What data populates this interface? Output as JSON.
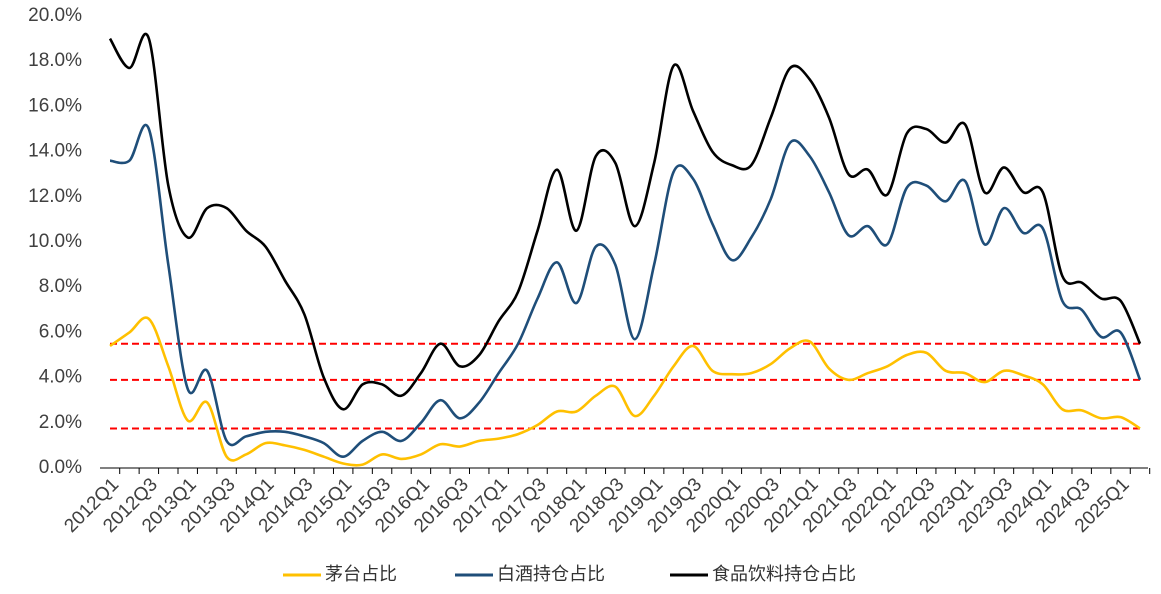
{
  "chart_data": {
    "type": "line",
    "categories": [
      "2012Q1",
      null,
      "2012Q3",
      null,
      "2013Q1",
      null,
      "2013Q3",
      null,
      "2014Q1",
      null,
      "2014Q3",
      null,
      "2015Q1",
      null,
      "2015Q3",
      null,
      "2016Q1",
      null,
      "2016Q3",
      null,
      "2017Q1",
      null,
      "2017Q3",
      null,
      "2018Q1",
      null,
      "2018Q3",
      null,
      "2019Q1",
      null,
      "2019Q3",
      null,
      "2020Q1",
      null,
      "2020Q3",
      null,
      "2021Q1",
      null,
      "2021Q3",
      null,
      "2022Q1",
      null,
      "2022Q3",
      null,
      "2023Q1",
      null,
      "2023Q3",
      null,
      "2024Q1",
      null,
      "2024Q3",
      null,
      "2025Q1",
      null
    ],
    "series": [
      {
        "name": "茅台占比",
        "color": "#ffc000",
        "values": [
          5.4,
          6.0,
          6.6,
          4.5,
          2.1,
          2.9,
          0.5,
          0.6,
          1.1,
          1.0,
          0.8,
          0.5,
          0.2,
          0.15,
          0.6,
          0.4,
          0.6,
          1.05,
          0.95,
          1.2,
          1.3,
          1.5,
          1.9,
          2.5,
          2.5,
          3.2,
          3.6,
          2.3,
          3.2,
          4.5,
          5.4,
          4.3,
          4.15,
          4.2,
          4.6,
          5.3,
          5.6,
          4.4,
          3.9,
          4.2,
          4.5,
          5.0,
          5.1,
          4.3,
          4.2,
          3.8,
          4.3,
          4.1,
          3.7,
          2.6,
          2.55,
          2.2,
          2.25,
          1.75
        ]
      },
      {
        "name": "白酒持仓占比",
        "color": "#1f4e79",
        "values": [
          13.6,
          13.6,
          15.0,
          9.0,
          3.5,
          4.3,
          1.2,
          1.4,
          1.6,
          1.6,
          1.4,
          1.1,
          0.5,
          1.2,
          1.6,
          1.2,
          2.0,
          3.0,
          2.2,
          2.9,
          4.2,
          5.5,
          7.5,
          9.1,
          7.3,
          9.8,
          9.0,
          5.7,
          9.0,
          13.1,
          12.8,
          10.8,
          9.2,
          10.2,
          11.9,
          14.4,
          13.8,
          12.2,
          10.3,
          10.7,
          9.9,
          12.4,
          12.5,
          11.8,
          12.7,
          9.9,
          11.5,
          10.4,
          10.6,
          7.4,
          7.0,
          5.8,
          6.0,
          3.9
        ]
      },
      {
        "name": "食品饮料持仓占比",
        "color": "#000000",
        "values": [
          19.0,
          17.7,
          19.0,
          12.5,
          10.2,
          11.5,
          11.5,
          10.5,
          9.8,
          8.3,
          6.8,
          4.0,
          2.6,
          3.7,
          3.7,
          3.2,
          4.2,
          5.5,
          4.5,
          5.0,
          6.5,
          7.8,
          10.5,
          13.2,
          10.5,
          13.8,
          13.5,
          10.7,
          13.5,
          17.8,
          15.8,
          14.0,
          13.4,
          13.4,
          15.5,
          17.7,
          17.2,
          15.5,
          13.0,
          13.2,
          12.1,
          14.8,
          15.0,
          14.4,
          15.2,
          12.2,
          13.3,
          12.2,
          12.2,
          8.5,
          8.2,
          7.5,
          7.4,
          5.5
        ]
      }
    ],
    "ylim": [
      0,
      20
    ],
    "yticks": [
      {
        "value": 0,
        "label": "0.0%"
      },
      {
        "value": 2,
        "label": "2.0%"
      },
      {
        "value": 4,
        "label": "4.0%"
      },
      {
        "value": 6,
        "label": "6.0%"
      },
      {
        "value": 8,
        "label": "8.0%"
      },
      {
        "value": 10,
        "label": "10.0%"
      },
      {
        "value": 12,
        "label": "12.0%"
      },
      {
        "value": 14,
        "label": "14.0%"
      },
      {
        "value": 16,
        "label": "16.0%"
      },
      {
        "value": 18,
        "label": "18.0%"
      },
      {
        "value": 20,
        "label": "20.0%"
      }
    ],
    "grid": false,
    "legend": "bottom"
  }
}
